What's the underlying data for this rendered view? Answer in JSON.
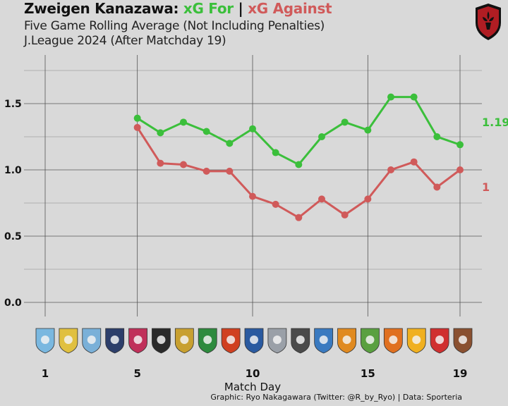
{
  "header": {
    "team": "Zweigen Kanazawa:",
    "for_label": "xG For",
    "separator": "|",
    "against_label": "xG Against",
    "subtitle1": "Five Game Rolling Average (Not Including Penalties)",
    "subtitle2": "J.League 2024 (After Matchday 19)"
  },
  "footer": {
    "credit": "Graphic: Ryo Nakagawara (Twitter: @R_by_Ryo) | Data: Sporteria"
  },
  "colors": {
    "for": "#3bbf3b",
    "against": "#d05a5a",
    "background": "#d9d9d9",
    "grid": "#555555"
  },
  "chart_data": {
    "type": "line",
    "title": "Zweigen Kanazawa: xG For | xG Against",
    "xlabel": "Match Day",
    "ylabel": "",
    "xlim": [
      0.5,
      19.9
    ],
    "ylim": [
      -0.05,
      1.75
    ],
    "x_ticks": [
      "1",
      "5",
      "10",
      "15",
      "19"
    ],
    "y_ticks": [
      "0.0",
      "0.5",
      "1.0",
      "1.5"
    ],
    "x_tick_values": [
      1,
      5,
      10,
      15,
      19
    ],
    "y_tick_values": [
      0.0,
      0.5,
      1.0,
      1.5
    ],
    "grid": true,
    "x": [
      5,
      6,
      7,
      8,
      9,
      10,
      11,
      12,
      13,
      14,
      15,
      16,
      17,
      18,
      19
    ],
    "series": [
      {
        "name": "xG For",
        "color": "#3bbf3b",
        "values": [
          1.39,
          1.28,
          1.36,
          1.29,
          1.2,
          1.31,
          1.13,
          1.04,
          1.25,
          1.36,
          1.3,
          1.55,
          1.55,
          1.25,
          1.19
        ],
        "end_label": "1.19"
      },
      {
        "name": "xG Against",
        "color": "#d05a5a",
        "values": [
          1.32,
          1.05,
          1.04,
          0.99,
          0.99,
          0.8,
          0.74,
          0.64,
          0.78,
          0.66,
          0.78,
          1.0,
          1.06,
          0.87,
          1.0
        ],
        "end_label": "1"
      }
    ],
    "opponent_badges": [
      {
        "matchday": 2,
        "color": "#7ab8e0",
        "icon": "opponent-badge-icon"
      },
      {
        "matchday": 3,
        "color": "#e0c040",
        "icon": "opponent-badge-icon"
      },
      {
        "matchday": 4,
        "color": "#7ab0d8",
        "icon": "opponent-badge-icon"
      },
      {
        "matchday": 5,
        "color": "#2c3e6a",
        "icon": "opponent-badge-icon"
      },
      {
        "matchday": 6,
        "color": "#c0305a",
        "icon": "opponent-badge-icon"
      },
      {
        "matchday": 7,
        "color": "#2a2a2a",
        "icon": "opponent-badge-icon"
      },
      {
        "matchday": 8,
        "color": "#c8a030",
        "icon": "opponent-badge-icon"
      },
      {
        "matchday": 9,
        "color": "#2e8b3e",
        "icon": "opponent-badge-icon"
      },
      {
        "matchday": 10,
        "color": "#d04020",
        "icon": "opponent-badge-icon"
      },
      {
        "matchday": 11,
        "color": "#2a5aa0",
        "icon": "opponent-badge-icon"
      },
      {
        "matchday": 12,
        "color": "#9aa0a8",
        "icon": "opponent-badge-icon"
      },
      {
        "matchday": 13,
        "color": "#4a4a4a",
        "icon": "opponent-badge-icon"
      },
      {
        "matchday": 14,
        "color": "#3a7ac0",
        "icon": "opponent-badge-icon"
      },
      {
        "matchday": 15,
        "color": "#e08a20",
        "icon": "opponent-badge-icon"
      },
      {
        "matchday": 16,
        "color": "#5aa040",
        "icon": "opponent-badge-icon"
      },
      {
        "matchday": 17,
        "color": "#e07020",
        "icon": "opponent-badge-icon"
      },
      {
        "matchday": 18,
        "color": "#f0b020",
        "icon": "opponent-badge-icon"
      },
      {
        "matchday": 19,
        "color": "#d03030",
        "icon": "opponent-badge-icon"
      },
      {
        "matchday": 20,
        "color": "#8a5030",
        "icon": "opponent-badge-icon"
      }
    ]
  }
}
